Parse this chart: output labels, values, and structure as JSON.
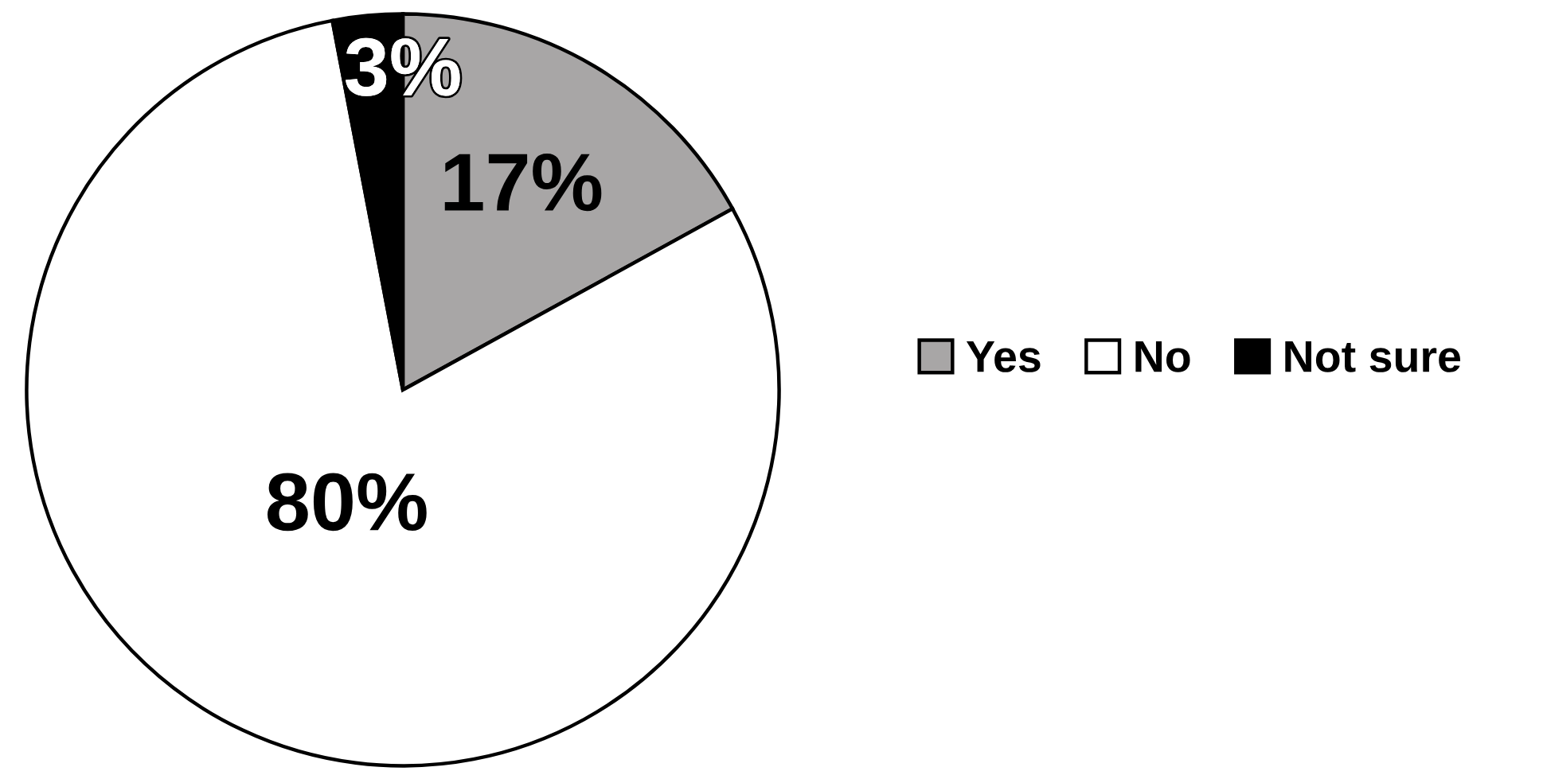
{
  "chart_data": {
    "type": "pie",
    "categories": [
      "Yes",
      "No",
      "Not sure"
    ],
    "values": [
      17,
      80,
      3
    ],
    "colors": [
      "#a8a6a6",
      "#ffffff",
      "#000000"
    ],
    "value_labels": [
      "17%",
      "80%",
      "3%"
    ],
    "legend": "right"
  }
}
